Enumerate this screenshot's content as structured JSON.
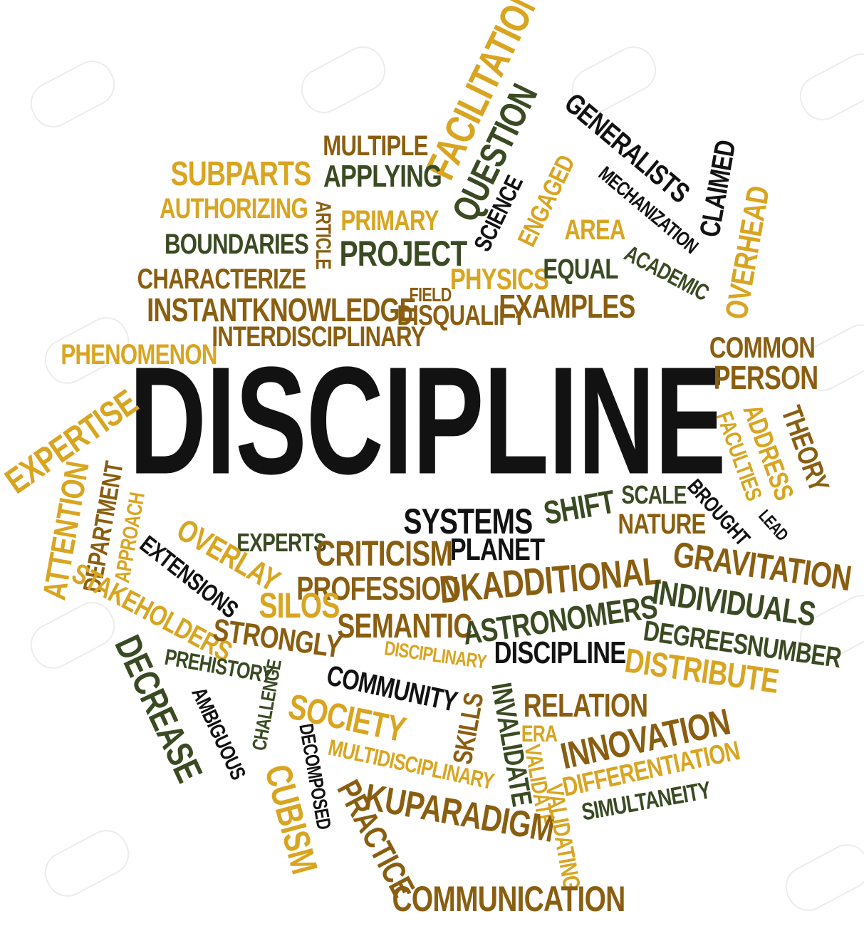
{
  "colors": {
    "gold": "#d9a520",
    "brown": "#8a5e10",
    "green": "#3a4a22",
    "black": "#121212"
  },
  "words": [
    {
      "text": "DISCIPLINE",
      "color": "black"
    },
    {
      "text": "FACILITATION",
      "color": "gold"
    },
    {
      "text": "QUESTION",
      "color": "green"
    },
    {
      "text": "MULTIPLE",
      "color": "brown"
    },
    {
      "text": "APPLYING",
      "color": "green"
    },
    {
      "text": "SUBPARTS",
      "color": "gold"
    },
    {
      "text": "AUTHORIZING",
      "color": "gold"
    },
    {
      "text": "ARTICLE",
      "color": "brown"
    },
    {
      "text": "PRIMARY",
      "color": "gold"
    },
    {
      "text": "BOUNDARIES",
      "color": "green"
    },
    {
      "text": "PROJECT",
      "color": "green"
    },
    {
      "text": "CHARACTERIZE",
      "color": "brown"
    },
    {
      "text": "INSTANTKNOWLEDGE",
      "color": "brown"
    },
    {
      "text": "FIELD",
      "color": "brown"
    },
    {
      "text": "PHYSICS",
      "color": "gold"
    },
    {
      "text": "EQUAL",
      "color": "green"
    },
    {
      "text": "ACADEMIC",
      "color": "green"
    },
    {
      "text": "AREA",
      "color": "gold"
    },
    {
      "text": "SCIENCE",
      "color": "black"
    },
    {
      "text": "ENGAGED",
      "color": "gold"
    },
    {
      "text": "GENERALISTS",
      "color": "black"
    },
    {
      "text": "MECHANIZATION",
      "color": "black"
    },
    {
      "text": "CLAIMED",
      "color": "black"
    },
    {
      "text": "OVERHEAD",
      "color": "gold"
    },
    {
      "text": "PHENOMENON",
      "color": "gold"
    },
    {
      "text": "INTERDISCIPLINARY",
      "color": "brown"
    },
    {
      "text": "DISQUALIFY",
      "color": "brown"
    },
    {
      "text": "EXAMPLES",
      "color": "brown"
    },
    {
      "text": "COMMON",
      "color": "brown"
    },
    {
      "text": "PERSON",
      "color": "brown"
    },
    {
      "text": "THEORY",
      "color": "brown"
    },
    {
      "text": "ADDRESS",
      "color": "gold"
    },
    {
      "text": "FACULTIES",
      "color": "gold"
    },
    {
      "text": "EXPERTISE",
      "color": "gold"
    },
    {
      "text": "SYSTEMS",
      "color": "black"
    },
    {
      "text": "SHIFT",
      "color": "green"
    },
    {
      "text": "SCALE",
      "color": "green"
    },
    {
      "text": "BROUGHT",
      "color": "black"
    },
    {
      "text": "LEAD",
      "color": "black"
    },
    {
      "text": "NATURE",
      "color": "brown"
    },
    {
      "text": "PLANET",
      "color": "black"
    },
    {
      "text": "EXPERTS",
      "color": "green"
    },
    {
      "text": "CRITICISM",
      "color": "brown"
    },
    {
      "text": "GRAVITATION",
      "color": "brown"
    },
    {
      "text": "ATTENTION",
      "color": "gold"
    },
    {
      "text": "DEPARTMENT",
      "color": "brown"
    },
    {
      "text": "APPROACH",
      "color": "gold"
    },
    {
      "text": "EXTENSIONS",
      "color": "black"
    },
    {
      "text": "OVERLAY",
      "color": "gold"
    },
    {
      "text": "PROFESSION",
      "color": "brown"
    },
    {
      "text": "DKADDITIONAL",
      "color": "brown"
    },
    {
      "text": "INDIVIDUALS",
      "color": "green"
    },
    {
      "text": "STAKEHOLDERS",
      "color": "gold"
    },
    {
      "text": "SILOS",
      "color": "gold"
    },
    {
      "text": "SEMANTIC",
      "color": "brown"
    },
    {
      "text": "ASTRONOMERS",
      "color": "green"
    },
    {
      "text": "DEGREESNUMBER",
      "color": "green"
    },
    {
      "text": "STRONGLY",
      "color": "brown"
    },
    {
      "text": "PREHISTORY",
      "color": "green"
    },
    {
      "text": "DISCIPLINARY",
      "color": "gold"
    },
    {
      "text": "DISCIPLINE",
      "color": "black"
    },
    {
      "text": "DISTRIBUTE",
      "color": "gold"
    },
    {
      "text": "DECREASE",
      "color": "green"
    },
    {
      "text": "COMMUNITY",
      "color": "black"
    },
    {
      "text": "CHALLENGE",
      "color": "green"
    },
    {
      "text": "AMBIGUOUS",
      "color": "black"
    },
    {
      "text": "SOCIETY",
      "color": "gold"
    },
    {
      "text": "SKILLS",
      "color": "brown"
    },
    {
      "text": "INVALIDATE",
      "color": "green"
    },
    {
      "text": "RELATION",
      "color": "brown"
    },
    {
      "text": "ERA",
      "color": "gold"
    },
    {
      "text": "INNOVATION",
      "color": "brown"
    },
    {
      "text": "DECOMPOSED",
      "color": "black"
    },
    {
      "text": "MULTIDISCIPLINARY",
      "color": "gold"
    },
    {
      "text": "DIFFERENTIATION",
      "color": "gold"
    },
    {
      "text": "VALIDATE",
      "color": "gold"
    },
    {
      "text": "CUBISM",
      "color": "gold"
    },
    {
      "text": "PRACTICE",
      "color": "brown"
    },
    {
      "text": "KUPARADIGM",
      "color": "brown"
    },
    {
      "text": "VALIDATING",
      "color": "gold"
    },
    {
      "text": "SIMULTANEITY",
      "color": "green"
    },
    {
      "text": "COMMUNICATION",
      "color": "brown"
    }
  ]
}
